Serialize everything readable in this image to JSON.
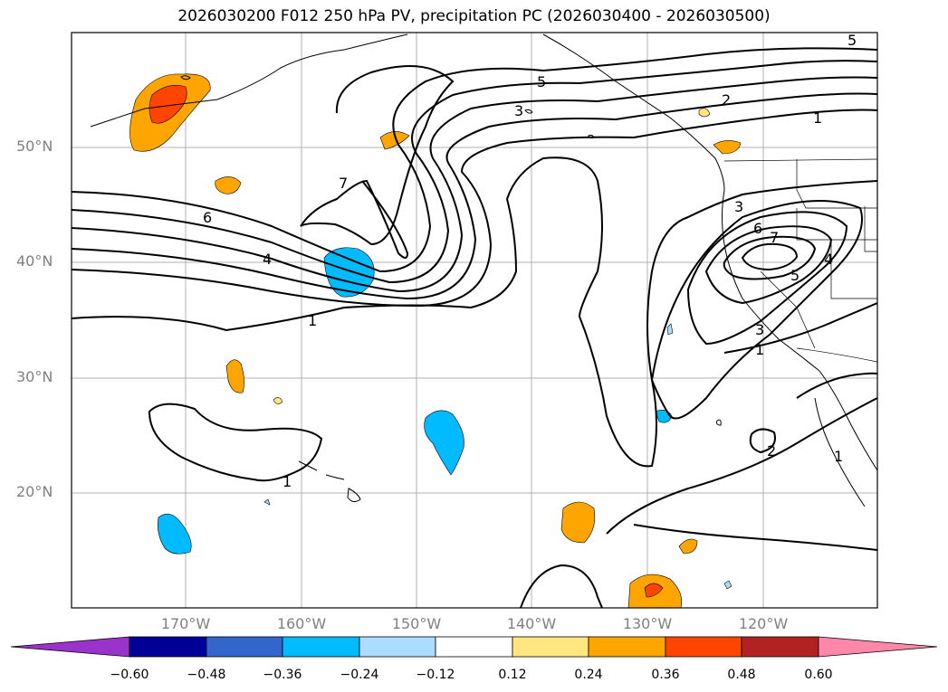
{
  "title": "2026030200 F012 250 hPa PV, precipitation PC (2026030400 - 2026030500)",
  "map": {
    "lat_labels": [
      "50°N",
      "40°N",
      "30°N",
      "20°N"
    ],
    "lon_labels": [
      "170°W",
      "160°W",
      "150°W",
      "140°W",
      "130°W",
      "120°W"
    ],
    "contour_labels": [
      "5",
      "3",
      "2",
      "1",
      "7",
      "6",
      "4",
      "1",
      "3",
      "6",
      "7",
      "5",
      "4",
      "3",
      "1",
      "2",
      "1",
      "1",
      "5"
    ]
  },
  "colorbar": {
    "ticks": [
      "−0.60",
      "−0.48",
      "−0.36",
      "−0.24",
      "−0.12",
      "0.12",
      "0.24",
      "0.36",
      "0.48",
      "0.60"
    ],
    "colors": [
      "#9933cc",
      "#000099",
      "#3366cc",
      "#00bbff",
      "#aaddff",
      "#ffffff",
      "#ffe680",
      "#ffa500",
      "#ff4500",
      "#b22222",
      "#ff88aa"
    ]
  }
}
